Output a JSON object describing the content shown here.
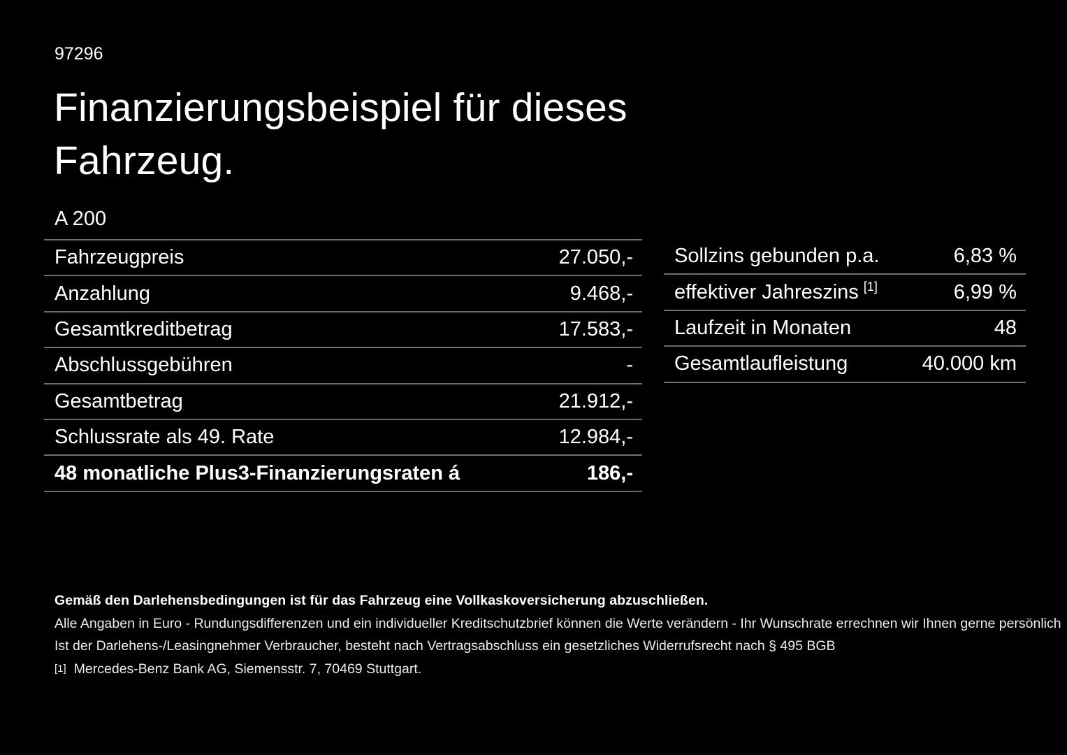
{
  "page": {
    "order_number": "97296",
    "title": "Finanzierungsbeispiel für dieses Fahrzeug.",
    "model": "A 200"
  },
  "finance_table": {
    "rows": [
      {
        "label": "Fahrzeugpreis",
        "value": "27.050,-"
      },
      {
        "label": "Anzahlung",
        "value": "9.468,-"
      },
      {
        "label": "Gesamtkreditbetrag",
        "value": "17.583,-"
      },
      {
        "label": "Abschlussgebühren",
        "value": "-"
      },
      {
        "label": "Gesamtbetrag",
        "value": "21.912,-"
      },
      {
        "label": "Schlussrate als 49. Rate",
        "value": "12.984,-"
      },
      {
        "label": "48 monatliche Plus3-Finanzierungsraten á",
        "value": "186,-",
        "bold": true
      }
    ]
  },
  "conditions_table": {
    "rows": [
      {
        "label": "Sollzins gebunden p.a.",
        "value": "6,83 %"
      },
      {
        "label": "effektiver Jahreszins",
        "footnote_marker": "[1]",
        "value": "6,99 %"
      },
      {
        "label": "Laufzeit in Monaten",
        "value": "48"
      },
      {
        "label": "Gesamtlaufleistung",
        "value": "40.000 km"
      }
    ]
  },
  "footer": {
    "insurance_note": "Gemäß den Darlehensbedingungen ist für das Fahrzeug eine Vollkaskoversicherung abzuschließen.",
    "disclaimer_line1": "Alle Angaben in Euro - Rundungsdifferenzen und ein individueller Kreditschutzbrief können die Werte verändern - Ihr Wunschrate errechnen wir Ihnen gerne persönlich",
    "disclaimer_line2": "Ist der Darlehens-/Leasingnehmer Verbraucher, besteht nach Vertragsabschluss ein gesetzliches Widerrufsrecht nach § 495 BGB",
    "footnote_marker": "[1]",
    "footnote_text": "Mercedes-Benz Bank AG, Siemensstr. 7, 70469 Stuttgart."
  },
  "colors": {
    "background": "#000000",
    "text": "#ffffff",
    "divider": "#6e6e6e"
  }
}
